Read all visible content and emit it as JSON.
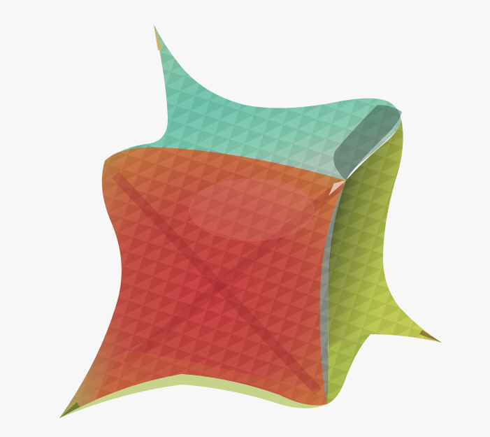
{
  "scene": {
    "background": "#f7f7f7",
    "object": "rounded-cube-with-spiked-corners",
    "shading": "faceted-triangle-mesh",
    "face_colors": {
      "front": "#c8423e",
      "top": "#6fc7aa",
      "right": "#b7c64a",
      "shadow": "#2f3b24"
    }
  }
}
